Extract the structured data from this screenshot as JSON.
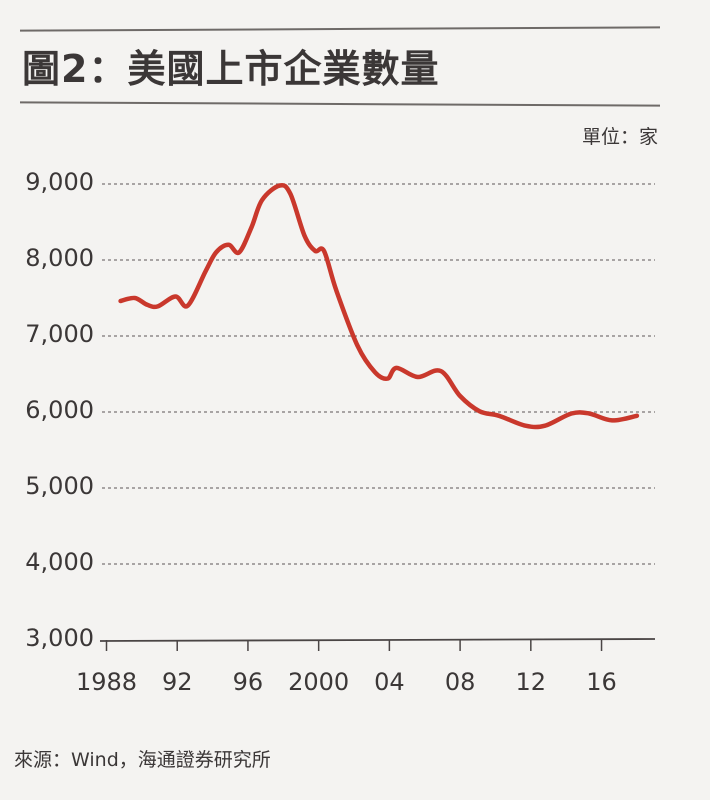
{
  "figure": {
    "title": "圖2：美國上市企業數量",
    "unit": "單位：家",
    "source": "來源：Wind，海通證券研究所",
    "line_color": "#c9382c",
    "grid_color": "#7a7676"
  },
  "y_ticks": [
    {
      "label": "9,000",
      "value": 9000
    },
    {
      "label": "8,000",
      "value": 8000
    },
    {
      "label": "7,000",
      "value": 7000
    },
    {
      "label": "6,000",
      "value": 6000
    },
    {
      "label": "5,000",
      "value": 5000
    },
    {
      "label": "4,000",
      "value": 4000
    },
    {
      "label": "3,000",
      "value": 3000
    }
  ],
  "x_ticks": [
    {
      "label": "1988",
      "value": 1988
    },
    {
      "label": "92",
      "value": 1992
    },
    {
      "label": "96",
      "value": 1996
    },
    {
      "label": "2000",
      "value": 2000
    },
    {
      "label": "04",
      "value": 2004
    },
    {
      "label": "08",
      "value": 2008
    },
    {
      "label": "12",
      "value": 2012
    },
    {
      "label": "16",
      "value": 2016
    }
  ],
  "chart_data": {
    "type": "line",
    "title": "圖2：美國上市企業數量",
    "xlabel": "",
    "ylabel": "單位：家",
    "ylim": [
      3000,
      9000
    ],
    "xlim": [
      1988,
      2019
    ],
    "grid": "horizontal dotted",
    "legend": "none",
    "source": "來源：Wind，海通證券研究所",
    "series": [
      {
        "name": "美國上市企業數量",
        "x": [
          1988.8,
          1989.6,
          1990.3,
          1990.9,
          1991.9,
          1992.6,
          1993.6,
          1994.2,
          1994.9,
          1995.5,
          1996.2,
          1996.8,
          1997.8,
          1998.4,
          1999.2,
          1999.8,
          2000.3,
          2001.0,
          2002.2,
          2003.2,
          2003.9,
          2004.4,
          2005.6,
          2006.9,
          2008.0,
          2009.1,
          2010.2,
          2011.7,
          2012.8,
          2014.3,
          2015.3,
          2016.6,
          2018.0
        ],
        "values": [
          7460,
          7500,
          7410,
          7390,
          7520,
          7400,
          7850,
          8100,
          8200,
          8100,
          8430,
          8790,
          8980,
          8870,
          8320,
          8120,
          8120,
          7600,
          6870,
          6520,
          6440,
          6580,
          6460,
          6540,
          6210,
          6010,
          5950,
          5820,
          5820,
          5980,
          5980,
          5890,
          5950
        ]
      }
    ]
  }
}
